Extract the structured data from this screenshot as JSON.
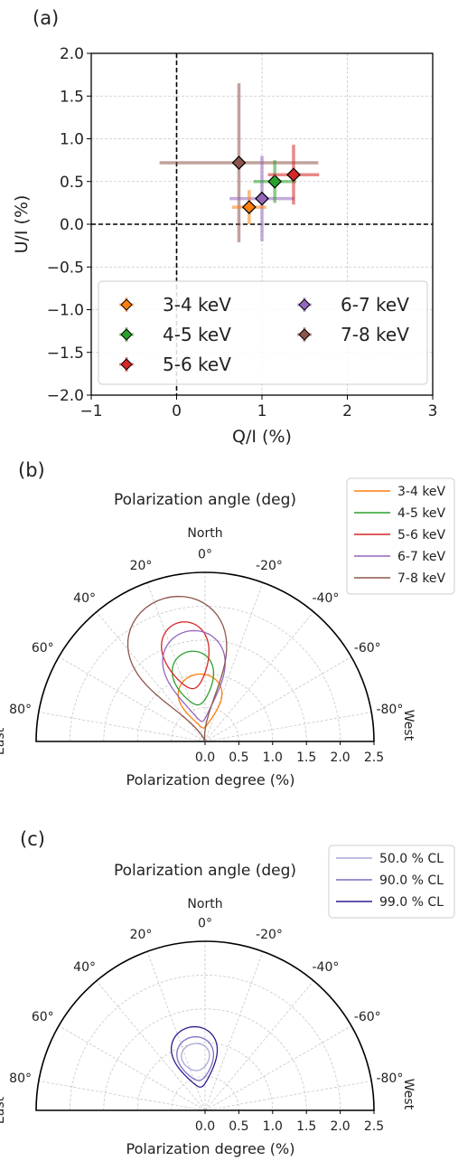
{
  "chart_data": [
    {
      "panel": "(a)",
      "type": "scatter",
      "xlabel": "Q/I (%)",
      "ylabel": "U/I (%)",
      "xlim": [
        -1,
        3
      ],
      "ylim": [
        -2,
        2
      ],
      "xticks": [
        "−1",
        "0",
        "1",
        "2",
        "3"
      ],
      "yticks": [
        "−2.0",
        "−1.5",
        "−1.0",
        "−0.5",
        "0.0",
        "0.5",
        "1.0",
        "1.5",
        "2.0"
      ],
      "grid": true,
      "legend_position": "lower-left",
      "series": [
        {
          "name": "3-4 keV",
          "color": "#ff7f0e",
          "x": 0.85,
          "y": 0.2,
          "x_err": 0.2,
          "y_err": 0.2
        },
        {
          "name": "4-5 keV",
          "color": "#2ca02c",
          "x": 1.15,
          "y": 0.5,
          "x_err": 0.25,
          "y_err": 0.25
        },
        {
          "name": "5-6 keV",
          "color": "#d62728",
          "x": 1.37,
          "y": 0.58,
          "x_err": 0.3,
          "y_err": 0.35
        },
        {
          "name": "6-7 keV",
          "color": "#9467bd",
          "x": 1.0,
          "y": 0.3,
          "x_err": 0.38,
          "y_err": 0.5
        },
        {
          "name": "7-8 keV",
          "color": "#8c564b",
          "x": 0.73,
          "y": 0.72,
          "x_err": 0.93,
          "y_err": 0.93
        }
      ]
    },
    {
      "panel": "(b)",
      "type": "polar-contour",
      "title": "Polarization angle (deg)",
      "xlabel": "Polarization degree (%)",
      "north_label": "North",
      "east_label": "East",
      "west_label": "West",
      "rlim": [
        0,
        2.5
      ],
      "r_ticks": [
        "0.0",
        "0.5",
        "1.0",
        "1.5",
        "2.0",
        "2.5"
      ],
      "angle_ticks": [
        "80°",
        "60°",
        "40°",
        "20°",
        "0°",
        "-20°",
        "-40°",
        "-60°",
        "-80°"
      ],
      "legend_position": "top-right",
      "series": [
        {
          "name": "3-4 keV",
          "color": "#ff7f0e",
          "pd_range": [
            0.2,
            1.0
          ],
          "pa_center": 6
        },
        {
          "name": "4-5 keV",
          "color": "#2ca02c",
          "pd_range": [
            0.55,
            1.35
          ],
          "pa_center": 10
        },
        {
          "name": "5-6 keV",
          "color": "#d62728",
          "pd_range": [
            0.8,
            1.8
          ],
          "pa_center": 12
        },
        {
          "name": "6-7 keV",
          "color": "#9467bd",
          "pd_range": [
            0.3,
            1.65
          ],
          "pa_center": 8
        },
        {
          "name": "7-8 keV",
          "color": "#8c564b",
          "pd_range": [
            0.0,
            2.2
          ],
          "pa_center": 16
        }
      ]
    },
    {
      "panel": "(c)",
      "type": "polar-contour",
      "title": "Polarization angle (deg)",
      "xlabel": "Polarization degree (%)",
      "north_label": "North",
      "east_label": "East",
      "west_label": "West",
      "rlim": [
        0,
        2.5
      ],
      "r_ticks": [
        "0.0",
        "0.5",
        "1.0",
        "1.5",
        "2.0",
        "2.5"
      ],
      "angle_ticks": [
        "80°",
        "60°",
        "40°",
        "20°",
        "0°",
        "-20°",
        "-40°",
        "-60°",
        "-80°"
      ],
      "legend_position": "top-right",
      "series": [
        {
          "name": "50.0 % CL",
          "color": "#a9a9d9",
          "pd_range": [
            0.6,
            1.0
          ],
          "pa_center": 10
        },
        {
          "name": "90.0 % CL",
          "color": "#7b6fc4",
          "pd_range": [
            0.45,
            1.1
          ],
          "pa_center": 10
        },
        {
          "name": "99.0 % CL",
          "color": "#2a1d8f",
          "pd_range": [
            0.35,
            1.25
          ],
          "pa_center": 10
        }
      ]
    }
  ]
}
